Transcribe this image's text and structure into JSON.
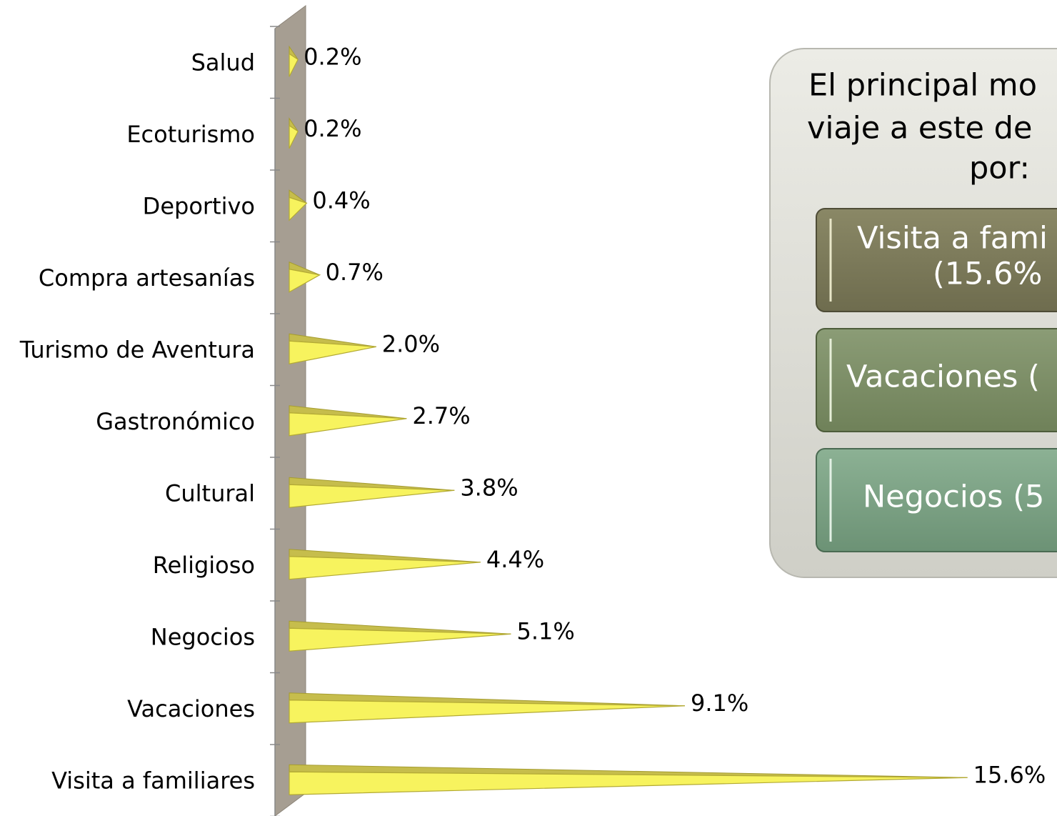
{
  "chart_data": {
    "type": "bar3d_pyramid",
    "categories": [
      "Salud",
      "Ecoturismo",
      "Deportivo",
      "Compra artesanías",
      "Turismo de Aventura",
      "Gastronómico",
      "Cultural",
      "Religioso",
      "Negocios",
      "Vacaciones",
      "Visita a familiares"
    ],
    "values": [
      0.2,
      0.2,
      0.4,
      0.7,
      2.0,
      2.7,
      3.8,
      4.4,
      5.1,
      9.1,
      15.6
    ],
    "value_labels": [
      "0.2%",
      "0.2%",
      "0.4%",
      "0.7%",
      "2.0%",
      "2.7%",
      "3.8%",
      "4.4%",
      "5.1%",
      "9.1%",
      "15.6%"
    ],
    "color": "#f7f35e",
    "xlim": [
      0,
      16
    ]
  },
  "callout": {
    "title_lines": [
      "El principal mo",
      "viaje a este de",
      "por:"
    ],
    "items": [
      [
        "Visita a fami",
        "(15.6%"
      ],
      [
        "Vacaciones ("
      ],
      [
        "Negocios (5"
      ]
    ]
  }
}
